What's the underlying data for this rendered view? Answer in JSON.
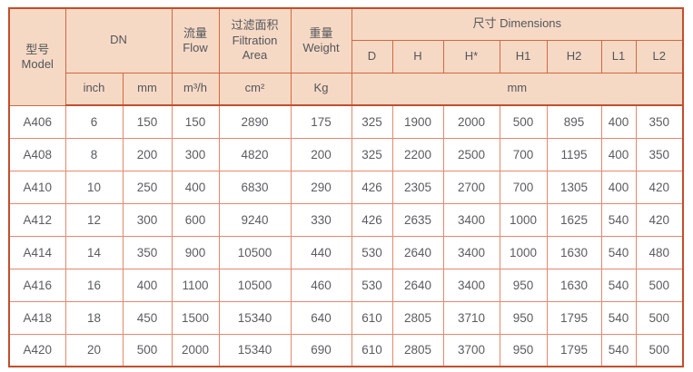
{
  "colors": {
    "header_bg": "#f6d9c5",
    "border_dark": "#c24e2c",
    "border_header": "#d4673f",
    "border_light": "#e5886d",
    "text": "#5a5c5e"
  },
  "table": {
    "header": {
      "model_zh": "型号",
      "model_en": "Model",
      "dn": "DN",
      "flow_zh": "流量",
      "flow_en": "Flow",
      "filtration_zh": "过滤面积",
      "filtration_en1": "Filtration",
      "filtration_en2": "Area",
      "weight_zh": "重量",
      "weight_en": "Weight",
      "dimensions": "尺寸 Dimensions",
      "dim_cols": [
        "D",
        "H",
        "H*",
        "H1",
        "H2",
        "L1",
        "L2"
      ],
      "units": {
        "inch": "inch",
        "mm": "mm",
        "flow": "m³/h",
        "area": "cm²",
        "weight": "Kg",
        "dims": "mm"
      }
    },
    "rows": [
      {
        "model": "A406",
        "values": [
          "6",
          "150",
          "150",
          "2890",
          "175",
          "325",
          "1900",
          "2000",
          "500",
          "895",
          "400",
          "350"
        ]
      },
      {
        "model": "A408",
        "values": [
          "8",
          "200",
          "300",
          "4820",
          "200",
          "325",
          "2200",
          "2500",
          "700",
          "1195",
          "400",
          "350"
        ]
      },
      {
        "model": "A410",
        "values": [
          "10",
          "250",
          "400",
          "6830",
          "290",
          "426",
          "2305",
          "2700",
          "700",
          "1305",
          "400",
          "420"
        ]
      },
      {
        "model": "A412",
        "values": [
          "12",
          "300",
          "600",
          "9240",
          "330",
          "426",
          "2635",
          "3400",
          "1000",
          "1625",
          "540",
          "420"
        ]
      },
      {
        "model": "A414",
        "values": [
          "14",
          "350",
          "900",
          "10500",
          "440",
          "530",
          "2640",
          "3400",
          "1000",
          "1630",
          "540",
          "480"
        ]
      },
      {
        "model": "A416",
        "values": [
          "16",
          "400",
          "1100",
          "10500",
          "460",
          "530",
          "2640",
          "3400",
          "950",
          "1630",
          "540",
          "500"
        ]
      },
      {
        "model": "A418",
        "values": [
          "18",
          "450",
          "1500",
          "15340",
          "640",
          "610",
          "2805",
          "3710",
          "950",
          "1795",
          "540",
          "500"
        ]
      },
      {
        "model": "A420",
        "values": [
          "20",
          "500",
          "2000",
          "15340",
          "690",
          "610",
          "2805",
          "3700",
          "950",
          "1795",
          "540",
          "500"
        ]
      }
    ]
  }
}
